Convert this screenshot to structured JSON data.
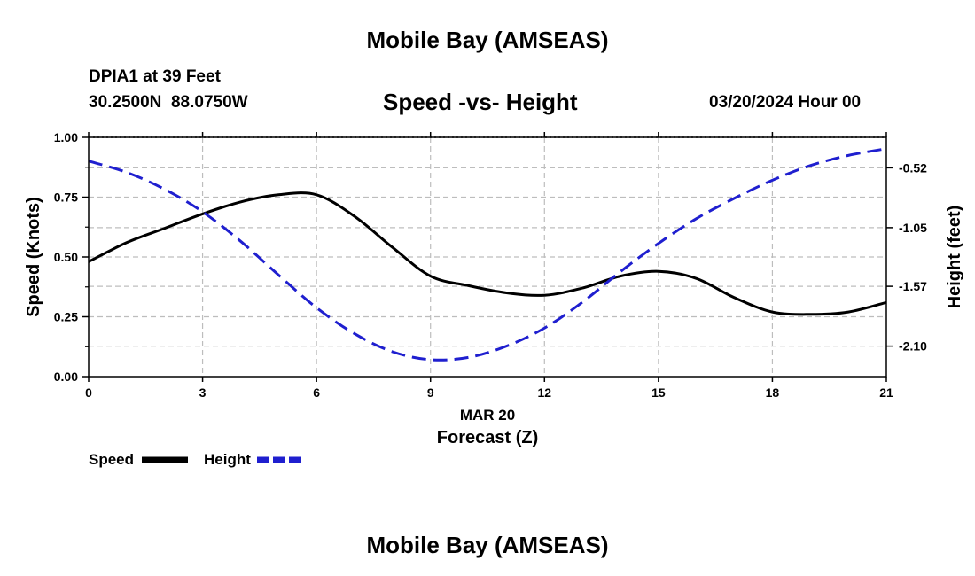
{
  "header": {
    "title": "Mobile Bay (AMSEAS)",
    "station_line": "DPIA1 at 39 Feet",
    "coords_line": "30.2500N  88.0750W",
    "datetime": "03/20/2024 Hour 00",
    "footer_title": "Mobile Bay (AMSEAS)"
  },
  "legend": {
    "speed_label": "Speed",
    "height_label": "Height"
  },
  "colors": {
    "speed": "#000000",
    "height": "#1f1fcf",
    "grid": "#bdbdbd"
  },
  "chart_data": {
    "type": "line",
    "title": "Speed -vs- Height",
    "date_label": "MAR 20",
    "xlabel": "Forecast (Z)",
    "ylabel": "Speed (Knots)",
    "y2label": "Height (feet)",
    "xlim": [
      0,
      21
    ],
    "ylim": [
      0,
      1
    ],
    "y2lim": [
      -2.37,
      -0.25
    ],
    "x_ticks": [
      0,
      3,
      6,
      9,
      12,
      15,
      18,
      21
    ],
    "x_tick_labels": [
      "0",
      "3",
      "6",
      "9",
      "12",
      "15",
      "18",
      "21"
    ],
    "y_ticks": [
      0,
      0.25,
      0.5,
      0.75,
      1.0
    ],
    "y_tick_labels": [
      "0.00",
      "0.25",
      "0.50",
      "0.75",
      "1.00"
    ],
    "y2_ticks": [
      -2.1,
      -1.57,
      -1.05,
      -0.52
    ],
    "y2_tick_labels": [
      "-2.10",
      "-1.57",
      "-1.05",
      "-0.52"
    ],
    "grid": true,
    "series": [
      {
        "name": "Speed",
        "axis": "left",
        "style": "solid",
        "x": [
          0,
          1,
          2,
          3,
          4,
          5,
          6,
          7,
          8,
          9,
          10,
          11,
          12,
          13,
          14,
          15,
          16,
          17,
          18,
          19,
          20,
          21
        ],
        "y": [
          0.48,
          0.56,
          0.62,
          0.68,
          0.73,
          0.76,
          0.76,
          0.67,
          0.54,
          0.42,
          0.38,
          0.35,
          0.34,
          0.37,
          0.42,
          0.44,
          0.41,
          0.33,
          0.27,
          0.26,
          0.27,
          0.31
        ]
      },
      {
        "name": "Height",
        "axis": "right",
        "style": "dashed",
        "x": [
          0,
          1,
          2,
          3,
          4,
          5,
          6,
          7,
          8,
          9,
          10,
          11,
          12,
          13,
          14,
          15,
          16,
          17,
          18,
          19,
          20,
          21
        ],
        "y": [
          -0.46,
          -0.56,
          -0.71,
          -0.91,
          -1.17,
          -1.47,
          -1.76,
          -1.99,
          -2.15,
          -2.22,
          -2.2,
          -2.1,
          -1.94,
          -1.71,
          -1.44,
          -1.19,
          -0.97,
          -0.79,
          -0.63,
          -0.5,
          -0.41,
          -0.35
        ]
      }
    ]
  }
}
